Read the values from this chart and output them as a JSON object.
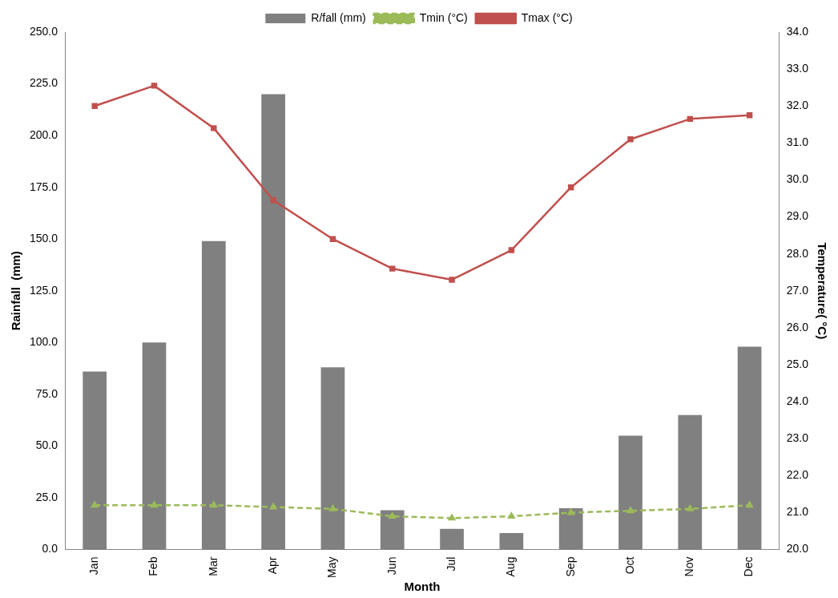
{
  "chart_data": {
    "type": "bar",
    "xlabel": "Month",
    "ylabel": "Rainfall  (mm)",
    "y2label": "Temperature( °C)",
    "categories": [
      "Jan",
      "Feb",
      "Mar",
      "Apr",
      "May",
      "Jun",
      "Jul",
      "Aug",
      "Sep",
      "Oct",
      "Nov",
      "Dec"
    ],
    "series": [
      {
        "name": "R/fall (mm)",
        "color": "#808080",
        "values": [
          86,
          100,
          149,
          220,
          88,
          19,
          10,
          8,
          20,
          55,
          65,
          98
        ]
      },
      {
        "name": "Tmin (°C)",
        "type": "line",
        "axis": "y2",
        "color": "#9bbb59",
        "marker": "triangle",
        "line_style": "dashed",
        "values": [
          21.2,
          21.2,
          21.2,
          21.15,
          21.1,
          20.9,
          20.85,
          20.9,
          21.0,
          21.05,
          21.1,
          21.2
        ]
      },
      {
        "name": "Tmax (°C)",
        "type": "line",
        "axis": "y2",
        "color": "#c0504d",
        "marker": "square",
        "line_style": "solid",
        "values": [
          32.0,
          32.55,
          31.4,
          29.45,
          28.4,
          27.6,
          27.3,
          28.1,
          29.8,
          31.1,
          31.65,
          31.75
        ]
      }
    ],
    "ylim": [
      0,
      250
    ],
    "yticks": [
      {
        "value": 0,
        "label": "0.0"
      },
      {
        "value": 25,
        "label": "25.0"
      },
      {
        "value": 50,
        "label": "50.0"
      },
      {
        "value": 75,
        "label": "75.0"
      },
      {
        "value": 100,
        "label": "100.0"
      },
      {
        "value": 125,
        "label": "125.0"
      },
      {
        "value": 150,
        "label": "150.0"
      },
      {
        "value": 175,
        "label": "175.0"
      },
      {
        "value": 200,
        "label": "200.0"
      },
      {
        "value": 225,
        "label": "225.0"
      },
      {
        "value": 250,
        "label": "250.0"
      }
    ],
    "y2lim": [
      20,
      34
    ],
    "y2ticks": [
      {
        "value": 20,
        "label": "20.0"
      },
      {
        "value": 21,
        "label": "21.0"
      },
      {
        "value": 22,
        "label": "22.0"
      },
      {
        "value": 23,
        "label": "23.0"
      },
      {
        "value": 24,
        "label": "24.0"
      },
      {
        "value": 25,
        "label": "25.0"
      },
      {
        "value": 26,
        "label": "26.0"
      },
      {
        "value": 27,
        "label": "27.0"
      },
      {
        "value": 28,
        "label": "28.0"
      },
      {
        "value": 29,
        "label": "29.0"
      },
      {
        "value": 30,
        "label": "30.0"
      },
      {
        "value": 31,
        "label": "31.0"
      },
      {
        "value": 32,
        "label": "32.0"
      },
      {
        "value": 33,
        "label": "33.0"
      },
      {
        "value": 34,
        "label": "34.0"
      }
    ],
    "grid": false,
    "legend": "top"
  }
}
